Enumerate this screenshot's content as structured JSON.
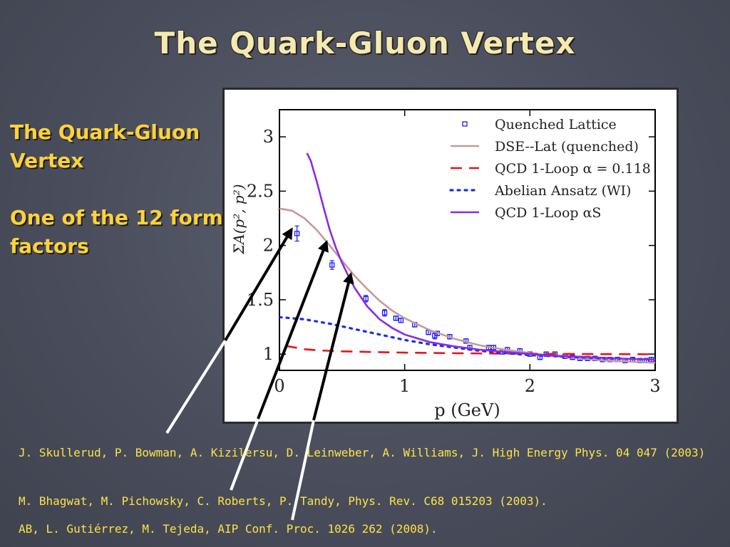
{
  "slide": {
    "title": "The Quark-Gluon Vertex",
    "side_heading": "The Quark-Gluon Vertex",
    "side_note": "One of the 12 form factors",
    "references": [
      "J. Skullerud, P. Bowman, A. Kizilersu, D. Leinweber, A. Williams, J. High Energy Phys. 04 047 (2003)",
      "M. Bhagwat, M. Pichowsky, C. Roberts, P. Tandy, Phys. Rev. C68 015203 (2003).",
      "AB, L. Gutiérrez, M. Tejeda, AIP Conf. Proc. 1026 262 (2008)."
    ]
  },
  "chart_data": {
    "type": "line",
    "xlabel": "p  (GeV)",
    "ylabel": "ΣA(p², p²)",
    "xlim": [
      0,
      3
    ],
    "ylim": [
      0.85,
      3.25
    ],
    "x_ticks": [
      0,
      1,
      2,
      3
    ],
    "x_tick_labels": [
      "0",
      "1",
      "2",
      "3"
    ],
    "y_ticks": [
      1,
      1.5,
      2,
      2.5,
      3
    ],
    "y_tick_labels": [
      "1",
      "1.5",
      "2",
      "2.5",
      "3"
    ],
    "grid": false,
    "legend_position": "top-right",
    "series": [
      {
        "name": "Quenched Lattice",
        "style": "scatter-errorbar",
        "color": "#1a1aff",
        "points": [
          {
            "x": 0.14,
            "y": 2.11,
            "err": 0.07
          },
          {
            "x": 0.42,
            "y": 1.82,
            "err": 0.04
          },
          {
            "x": 0.69,
            "y": 1.51,
            "err": 0.03
          },
          {
            "x": 0.84,
            "y": 1.38,
            "err": 0.03
          },
          {
            "x": 0.93,
            "y": 1.33,
            "err": 0.02
          },
          {
            "x": 0.97,
            "y": 1.31,
            "err": 0.02
          },
          {
            "x": 1.08,
            "y": 1.27,
            "err": 0.02
          },
          {
            "x": 1.19,
            "y": 1.2,
            "err": 0.02
          },
          {
            "x": 1.24,
            "y": 1.17,
            "err": 0.03
          },
          {
            "x": 1.26,
            "y": 1.19,
            "err": 0.02
          },
          {
            "x": 1.36,
            "y": 1.16,
            "err": 0.02
          },
          {
            "x": 1.49,
            "y": 1.12,
            "err": 0.02
          },
          {
            "x": 1.52,
            "y": 1.06,
            "err": 0.02
          },
          {
            "x": 1.67,
            "y": 1.06,
            "err": 0.02
          },
          {
            "x": 1.71,
            "y": 1.06,
            "err": 0.02
          },
          {
            "x": 1.78,
            "y": 1.02,
            "err": 0.02
          },
          {
            "x": 1.82,
            "y": 1.04,
            "err": 0.02
          },
          {
            "x": 1.92,
            "y": 1.03,
            "err": 0.02
          },
          {
            "x": 2.0,
            "y": 1.0,
            "err": 0.02
          },
          {
            "x": 2.08,
            "y": 0.97,
            "err": 0.02
          },
          {
            "x": 2.13,
            "y": 1.0,
            "err": 0.02
          },
          {
            "x": 2.2,
            "y": 1.0,
            "err": 0.02
          },
          {
            "x": 2.28,
            "y": 0.98,
            "err": 0.02
          },
          {
            "x": 2.34,
            "y": 0.97,
            "err": 0.02
          },
          {
            "x": 2.4,
            "y": 0.96,
            "err": 0.02
          },
          {
            "x": 2.46,
            "y": 0.96,
            "err": 0.02
          },
          {
            "x": 2.52,
            "y": 0.96,
            "err": 0.02
          },
          {
            "x": 2.58,
            "y": 0.95,
            "err": 0.02
          },
          {
            "x": 2.64,
            "y": 0.95,
            "err": 0.02
          },
          {
            "x": 2.7,
            "y": 0.95,
            "err": 0.02
          },
          {
            "x": 2.76,
            "y": 0.94,
            "err": 0.02
          },
          {
            "x": 2.82,
            "y": 0.95,
            "err": 0.02
          },
          {
            "x": 2.88,
            "y": 0.94,
            "err": 0.02
          },
          {
            "x": 2.93,
            "y": 0.94,
            "err": 0.02
          },
          {
            "x": 2.97,
            "y": 0.95,
            "err": 0.02
          }
        ]
      },
      {
        "name": "DSE--Lat (quenched)",
        "style": "solid",
        "color": "#c49a9a",
        "x": [
          0,
          0.1,
          0.2,
          0.3,
          0.4,
          0.5,
          0.6,
          0.7,
          0.8,
          0.9,
          1.0,
          1.2,
          1.4,
          1.6,
          1.8,
          2.0,
          2.2,
          2.4,
          2.6,
          2.8,
          3.0
        ],
        "y": [
          2.34,
          2.32,
          2.25,
          2.14,
          2.0,
          1.86,
          1.72,
          1.6,
          1.49,
          1.4,
          1.33,
          1.22,
          1.14,
          1.08,
          1.04,
          1.01,
          0.98,
          0.96,
          0.94,
          0.93,
          0.92
        ]
      },
      {
        "name": "QCD 1-Loop α = 0.118",
        "style": "dashed",
        "color": "#e8141b",
        "x": [
          0.05,
          0.1,
          0.2,
          0.3,
          0.5,
          0.8,
          1.0,
          1.5,
          2.0,
          2.5,
          3.0
        ],
        "y": [
          1.075,
          1.065,
          1.045,
          1.035,
          1.025,
          1.018,
          1.013,
          1.007,
          1.003,
          1.0,
          0.998
        ]
      },
      {
        "name": "Abelian Ansatz (WI)",
        "style": "dotted",
        "color": "#1a2ee8",
        "x": [
          0,
          0.2,
          0.4,
          0.6,
          0.8,
          1.0,
          1.2,
          1.4,
          1.6,
          1.8,
          2.0,
          2.2,
          2.4,
          2.6,
          2.8,
          3.0
        ],
        "y": [
          1.34,
          1.32,
          1.28,
          1.23,
          1.18,
          1.13,
          1.09,
          1.06,
          1.03,
          1.01,
          0.99,
          0.98,
          0.97,
          0.96,
          0.955,
          0.95
        ]
      },
      {
        "name": "QCD 1-Loop αS",
        "style": "solid",
        "color": "#8a2be2",
        "x": [
          0.22,
          0.25,
          0.3,
          0.35,
          0.4,
          0.45,
          0.5,
          0.55,
          0.6,
          0.7,
          0.8,
          0.9,
          1.0,
          1.2,
          1.4,
          1.6,
          1.8,
          2.0,
          2.2,
          2.4,
          2.6,
          2.8,
          3.0
        ],
        "y": [
          2.85,
          2.78,
          2.58,
          2.36,
          2.15,
          1.98,
          1.84,
          1.72,
          1.61,
          1.44,
          1.32,
          1.24,
          1.18,
          1.11,
          1.07,
          1.04,
          1.02,
          1.0,
          0.985,
          0.975,
          0.965,
          0.955,
          0.95
        ]
      }
    ]
  }
}
